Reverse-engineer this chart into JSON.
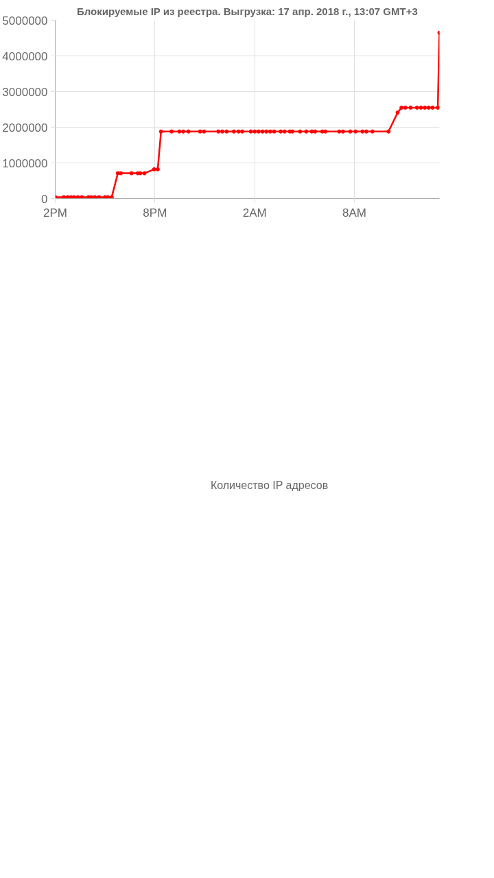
{
  "chart_data": {
    "type": "line",
    "title": "Блокируемые IP из реестра. Выгрузка: 17 апр. 2018 г., 13:07 GMT+3",
    "x": [
      "2018-04-16T14:00",
      "2018-04-16T14:31",
      "2018-04-16T14:45",
      "2018-04-16T14:57",
      "2018-04-16T15:08",
      "2018-04-16T15:22",
      "2018-04-16T15:36",
      "2018-04-16T16:00",
      "2018-04-16T16:10",
      "2018-04-16T16:23",
      "2018-04-16T16:38",
      "2018-04-16T17:00",
      "2018-04-16T17:10",
      "2018-04-16T17:24",
      "2018-04-16T17:46",
      "2018-04-16T17:57",
      "2018-04-16T18:35",
      "2018-04-16T18:58",
      "2018-04-16T19:07",
      "2018-04-16T19:22",
      "2018-04-16T19:57",
      "2018-04-16T20:10",
      "2018-04-16T20:22",
      "2018-04-16T21:00",
      "2018-04-16T21:28",
      "2018-04-16T21:42",
      "2018-04-16T22:01",
      "2018-04-16T22:43",
      "2018-04-16T22:57",
      "2018-04-16T23:49",
      "2018-04-17T00:03",
      "2018-04-17T00:19",
      "2018-04-17T00:45",
      "2018-04-17T01:02",
      "2018-04-17T01:15",
      "2018-04-17T01:46",
      "2018-04-17T02:00",
      "2018-04-17T02:14",
      "2018-04-17T02:28",
      "2018-04-17T02:42",
      "2018-04-17T02:56",
      "2018-04-17T03:10",
      "2018-04-17T03:34",
      "2018-04-17T03:48",
      "2018-04-17T04:07",
      "2018-04-17T04:16",
      "2018-04-17T04:44",
      "2018-04-17T05:06",
      "2018-04-17T05:26",
      "2018-04-17T05:38",
      "2018-04-17T06:04",
      "2018-04-17T06:15",
      "2018-04-17T07:05",
      "2018-04-17T07:19",
      "2018-04-17T07:45",
      "2018-04-17T08:04",
      "2018-04-17T08:29",
      "2018-04-17T08:43",
      "2018-04-17T09:05",
      "2018-04-17T10:03",
      "2018-04-17T10:36",
      "2018-04-17T10:50",
      "2018-04-17T11:04",
      "2018-04-17T11:23",
      "2018-04-17T11:46",
      "2018-04-17T12:00",
      "2018-04-17T12:14",
      "2018-04-17T12:28",
      "2018-04-17T12:42",
      "2018-04-17T13:01",
      "2018-04-17T13:07"
    ],
    "series": [
      {
        "name": "Количество IP адресов",
        "color": "#ff0000",
        "values": [
          40000,
          40000,
          40000,
          40000,
          40000,
          40000,
          40000,
          40000,
          40000,
          40000,
          40000,
          40000,
          40000,
          40000,
          710000,
          710000,
          710000,
          710000,
          710000,
          710000,
          820000,
          820000,
          1880000,
          1880000,
          1880000,
          1880000,
          1880000,
          1880000,
          1880000,
          1880000,
          1880000,
          1880000,
          1880000,
          1880000,
          1880000,
          1880000,
          1880000,
          1880000,
          1880000,
          1880000,
          1880000,
          1880000,
          1880000,
          1880000,
          1880000,
          1880000,
          1880000,
          1880000,
          1880000,
          1880000,
          1880000,
          1880000,
          1880000,
          1880000,
          1880000,
          1880000,
          1880000,
          1880000,
          1880000,
          1880000,
          2410000,
          2550000,
          2550000,
          2550000,
          2550000,
          2550000,
          2550000,
          2550000,
          2550000,
          2550000,
          4650000
        ]
      }
    ],
    "xlim": [
      "2018-04-16T14:00",
      "2018-04-17T13:07"
    ],
    "ylim": [
      0,
      5000000
    ],
    "xticks": [
      {
        "value": "2018-04-16T14:00",
        "label": "2PM"
      },
      {
        "value": "2018-04-16T20:00",
        "label": "8PM"
      },
      {
        "value": "2018-04-17T02:00",
        "label": "2AM"
      },
      {
        "value": "2018-04-17T08:00",
        "label": "8AM"
      }
    ],
    "yticks": [
      0,
      1000000,
      2000000,
      3000000,
      4000000,
      5000000
    ],
    "grid": true,
    "legend": "bottom",
    "marker": "circle",
    "line_style": "solid"
  }
}
